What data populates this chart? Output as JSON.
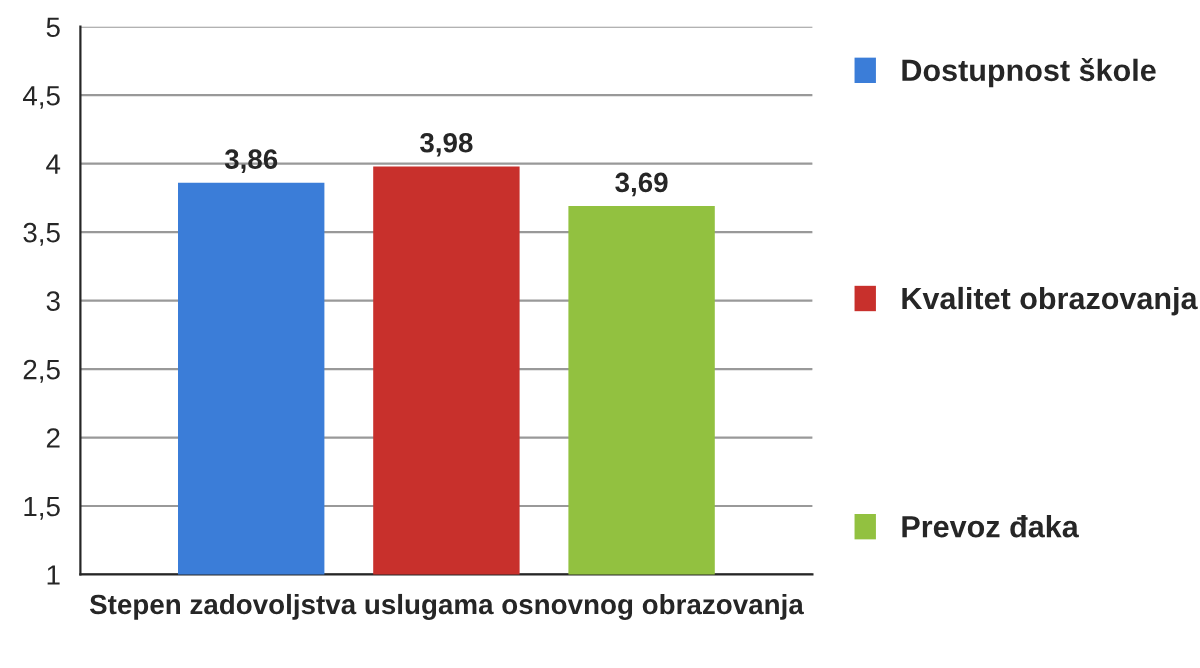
{
  "chart_data": {
    "type": "bar",
    "categories": [
      "Stepen zadovoljstva uslugama osnovnog obrazovanja"
    ],
    "series": [
      {
        "name": "Dostupnost škole",
        "color": "#3b7dd8",
        "values": [
          3.86
        ],
        "value_labels": [
          "3,86"
        ]
      },
      {
        "name": "Kvalitet obrazovanja",
        "color": "#c8302c",
        "values": [
          3.98
        ],
        "value_labels": [
          "3,98"
        ]
      },
      {
        "name": "Prevoz đaka",
        "color": "#92c140",
        "values": [
          3.69
        ],
        "value_labels": [
          "3,69"
        ]
      }
    ],
    "ylim": [
      1,
      5
    ],
    "yticks": [
      1,
      {
        "value": 1.5,
        "label": "1,5"
      },
      2,
      {
        "value": 2.5,
        "label": "2,5"
      },
      3,
      {
        "value": 3.5,
        "label": "3,5"
      },
      4,
      {
        "value": 4.5,
        "label": "4,5"
      },
      5
    ],
    "grid": "y",
    "legend": "right"
  }
}
